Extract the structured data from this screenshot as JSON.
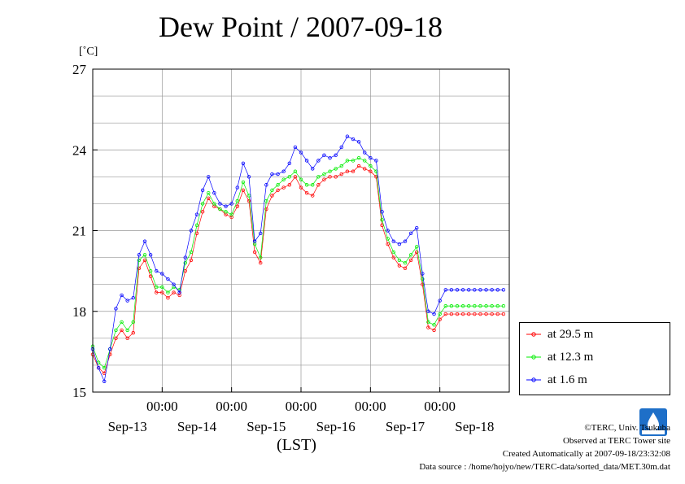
{
  "title": "Dew Point / 2007-09-18",
  "unit": "[˚C]",
  "xaxis_label": "(LST)",
  "credits": {
    "copyright": "©TERC, Univ. Tsukuba",
    "observed": "Observed at TERC Tower site",
    "created": "Created Automatically at 2007-09-18/23:32:08",
    "source": "Data source : /home/hojyo/new/TERC-data/sorted_data/MET.30m.dat"
  },
  "logo_icon": "terc-logo-icon",
  "colors": {
    "at 29.5 m": "#ff0000",
    "at 12.3 m": "#00ee00",
    "at 1.6 m": "#0000ff"
  },
  "chart_data": {
    "type": "line",
    "title": "Dew Point / 2007-09-18",
    "ylabel": "[˚C]",
    "xlabel": "(LST)",
    "ylim": [
      15,
      27
    ],
    "yticks": [
      15,
      18,
      21,
      24,
      27
    ],
    "xlim_days": [
      0,
      6
    ],
    "xtick_labels": [
      "00:00",
      "00:00",
      "00:00",
      "00:00",
      "00:00"
    ],
    "xtick_positions_days": [
      1,
      2,
      3,
      4,
      5
    ],
    "date_labels": [
      "Sep-13",
      "Sep-14",
      "Sep-15",
      "Sep-16",
      "Sep-17",
      "Sep-18"
    ],
    "grid": true,
    "legend_position": "right",
    "x_hours": [
      0,
      2,
      4,
      6,
      8,
      10,
      12,
      14,
      16,
      18,
      20,
      22,
      24,
      26,
      28,
      30,
      32,
      34,
      36,
      38,
      40,
      42,
      44,
      46,
      48,
      50,
      52,
      54,
      56,
      58,
      60,
      62,
      64,
      66,
      68,
      70,
      72,
      74,
      76,
      78,
      80,
      82,
      84,
      86,
      88,
      90,
      92,
      94,
      96,
      98,
      100,
      102,
      104,
      106,
      108,
      110,
      112,
      114,
      116,
      118,
      120,
      122,
      124,
      126,
      128,
      130,
      132,
      134,
      136,
      138,
      140,
      142
    ],
    "series": [
      {
        "name": "at 29.5 m",
        "values": [
          16.4,
          15.9,
          15.7,
          16.4,
          17.0,
          17.3,
          17.0,
          17.2,
          19.6,
          19.9,
          19.3,
          18.7,
          18.7,
          18.5,
          18.7,
          18.6,
          19.5,
          19.9,
          20.9,
          21.7,
          22.2,
          21.9,
          21.8,
          21.6,
          21.5,
          21.9,
          22.5,
          22.1,
          20.2,
          19.8,
          21.8,
          22.3,
          22.5,
          22.6,
          22.7,
          23.0,
          22.6,
          22.4,
          22.3,
          22.7,
          22.9,
          23.0,
          23.0,
          23.1,
          23.2,
          23.2,
          23.4,
          23.3,
          23.2,
          23.0,
          21.2,
          20.5,
          20.0,
          19.7,
          19.6,
          19.9,
          20.2,
          19.0,
          17.4,
          17.3,
          17.7,
          17.9,
          17.9,
          17.9,
          17.9,
          17.9,
          17.9,
          17.9,
          17.9,
          17.9,
          17.9,
          17.9
        ]
      },
      {
        "name": "at 12.3 m",
        "values": [
          16.7,
          16.1,
          15.9,
          16.6,
          17.3,
          17.6,
          17.3,
          17.6,
          19.9,
          20.1,
          19.5,
          18.9,
          18.9,
          18.7,
          18.9,
          18.8,
          19.8,
          20.2,
          21.2,
          22.0,
          22.4,
          22.0,
          21.8,
          21.7,
          21.6,
          22.1,
          22.8,
          22.3,
          20.5,
          20.0,
          22.1,
          22.5,
          22.7,
          22.9,
          23.0,
          23.2,
          22.9,
          22.7,
          22.7,
          23.0,
          23.1,
          23.2,
          23.3,
          23.4,
          23.6,
          23.6,
          23.7,
          23.6,
          23.4,
          23.2,
          21.4,
          20.7,
          20.2,
          19.9,
          19.8,
          20.1,
          20.4,
          19.2,
          17.6,
          17.5,
          17.9,
          18.2,
          18.2,
          18.2,
          18.2,
          18.2,
          18.2,
          18.2,
          18.2,
          18.2,
          18.2,
          18.2
        ]
      },
      {
        "name": "at 1.6 m",
        "values": [
          16.6,
          15.9,
          15.4,
          16.6,
          18.1,
          18.6,
          18.4,
          18.5,
          20.1,
          20.6,
          20.1,
          19.5,
          19.4,
          19.2,
          19.0,
          18.7,
          20.0,
          21.0,
          21.6,
          22.5,
          23.0,
          22.4,
          22.0,
          21.9,
          22.0,
          22.6,
          23.5,
          23.0,
          20.6,
          20.9,
          22.7,
          23.1,
          23.1,
          23.2,
          23.5,
          24.1,
          23.9,
          23.6,
          23.3,
          23.6,
          23.8,
          23.7,
          23.8,
          24.1,
          24.5,
          24.4,
          24.3,
          23.9,
          23.7,
          23.6,
          21.7,
          21.0,
          20.6,
          20.5,
          20.6,
          20.9,
          21.1,
          19.4,
          18.0,
          17.9,
          18.4,
          18.8,
          18.8,
          18.8,
          18.8,
          18.8,
          18.8,
          18.8,
          18.8,
          18.8,
          18.8,
          18.8
        ]
      }
    ]
  }
}
